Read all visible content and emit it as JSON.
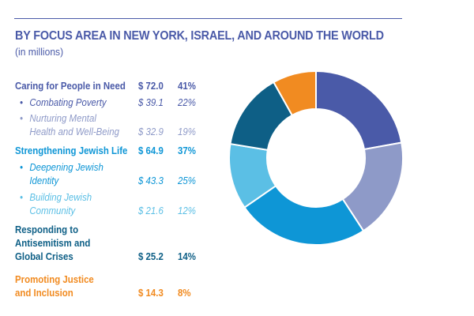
{
  "title": "BY FOCUS AREA IN NEW YORK, ISRAEL, AND AROUND THE WORLD",
  "subtitle": "(in millions)",
  "colors": {
    "accent": "#4a5aa8",
    "caring": "#4a5aa8",
    "caring_sub2": "#8e9ac8",
    "jewish": "#0e96d6",
    "jewish_sub2": "#5bbfe5",
    "antisemitism": "#0e5f86",
    "justice": "#f18b21"
  },
  "rows": [
    {
      "kind": "cat",
      "lines": [
        "Caring for People in Need"
      ],
      "amount": "$ 72.0",
      "pct": "41%",
      "color": "#4a5aa8"
    },
    {
      "kind": "sub",
      "lines": [
        "Combating Poverty"
      ],
      "amount": "$ 39.1",
      "pct": "22%",
      "color": "#4a5aa8"
    },
    {
      "kind": "sub",
      "lines": [
        "Nurturing Mental",
        "Health and Well-Being"
      ],
      "amount": "$ 32.9",
      "pct": "19%",
      "color": "#8e9ac8"
    },
    {
      "kind": "cat",
      "lines": [
        "Strengthening Jewish Life"
      ],
      "amount": "$ 64.9",
      "pct": "37%",
      "color": "#0e96d6"
    },
    {
      "kind": "sub",
      "lines": [
        "Deepening Jewish",
        "Identity"
      ],
      "amount": "$ 43.3",
      "pct": "25%",
      "color": "#0e96d6"
    },
    {
      "kind": "sub",
      "lines": [
        "Building Jewish",
        "Community"
      ],
      "amount": "$ 21.6",
      "pct": "12%",
      "color": "#5bbfe5"
    },
    {
      "kind": "cat",
      "lines": [
        "Responding to",
        "Antisemitism and",
        "Global Crises"
      ],
      "amount": "$ 25.2",
      "pct": "14%",
      "color": "#0e5f86"
    },
    {
      "kind": "cat",
      "lines": [
        "Promoting Justice",
        "and Inclusion"
      ],
      "amount": "$ 14.3",
      "pct": "8%",
      "color": "#f18b21"
    }
  ],
  "chart_data": {
    "type": "pie",
    "donut": true,
    "title": "BY FOCUS AREA IN NEW YORK, ISRAEL, AND AROUND THE WORLD",
    "subtitle": "(in millions)",
    "start_angle_deg": 0,
    "direction": "clockwise",
    "slices": [
      {
        "label": "Combating Poverty",
        "value": 39.1,
        "color": "#4a5aa8"
      },
      {
        "label": "Nurturing Mental Health and Well-Being",
        "value": 32.9,
        "color": "#8e9ac8"
      },
      {
        "label": "Deepening Jewish Identity",
        "value": 43.3,
        "color": "#0e96d6"
      },
      {
        "label": "Building Jewish Community",
        "value": 21.6,
        "color": "#5bbfe5"
      },
      {
        "label": "Responding to Antisemitism and Global Crises",
        "value": 25.2,
        "color": "#0e5f86"
      },
      {
        "label": "Promoting Justice and Inclusion",
        "value": 14.3,
        "color": "#f18b21"
      }
    ]
  }
}
